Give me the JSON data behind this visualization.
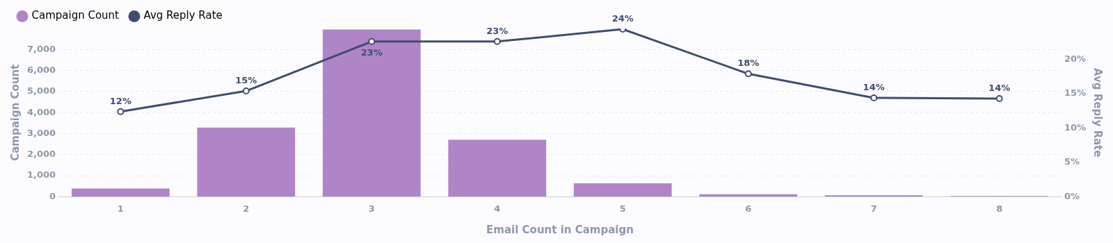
{
  "chart_data": {
    "type": "bar",
    "xlabel": "Email Count in Campaign",
    "ylabel": "Campaign Count",
    "y2label": "Avg Reply Rate",
    "categories": [
      "1",
      "2",
      "3",
      "4",
      "5",
      "6",
      "7",
      "8"
    ],
    "series": [
      {
        "name": "Campaign Count",
        "color": "#b085c8",
        "values": [
          390,
          3290,
          7950,
          2710,
          640,
          120,
          70,
          40
        ]
      },
      {
        "name": "Avg Reply Rate",
        "type": "line",
        "axis": "y2",
        "color": "#3f4d6e",
        "marker": "circle",
        "values": [
          12.4,
          15.4,
          22.6,
          22.6,
          24.4,
          17.9,
          14.4,
          14.3
        ],
        "value_labels": [
          "12%",
          "15%",
          "23%",
          "23%",
          "24%",
          "18%",
          "14%",
          "14%"
        ]
      }
    ],
    "ylim": [
      0,
      8000
    ],
    "yticks": [
      {
        "value": 0,
        "label": "0"
      },
      {
        "value": 1000,
        "label": "1,000"
      },
      {
        "value": 2000,
        "label": "2,000"
      },
      {
        "value": 3000,
        "label": "3,000"
      },
      {
        "value": 4000,
        "label": "4,000"
      },
      {
        "value": 5000,
        "label": "5,000"
      },
      {
        "value": 6000,
        "label": "6,000"
      },
      {
        "value": 7000,
        "label": "7,000"
      }
    ],
    "y2lim": [
      0,
      24.5
    ],
    "y2ticks": [
      {
        "value": 0,
        "label": "0%"
      },
      {
        "value": 5,
        "label": "5%"
      },
      {
        "value": 10,
        "label": "10%"
      },
      {
        "value": 15,
        "label": "15%"
      },
      {
        "value": 20,
        "label": "20%"
      }
    ],
    "grid": "y",
    "legend": "top left"
  }
}
